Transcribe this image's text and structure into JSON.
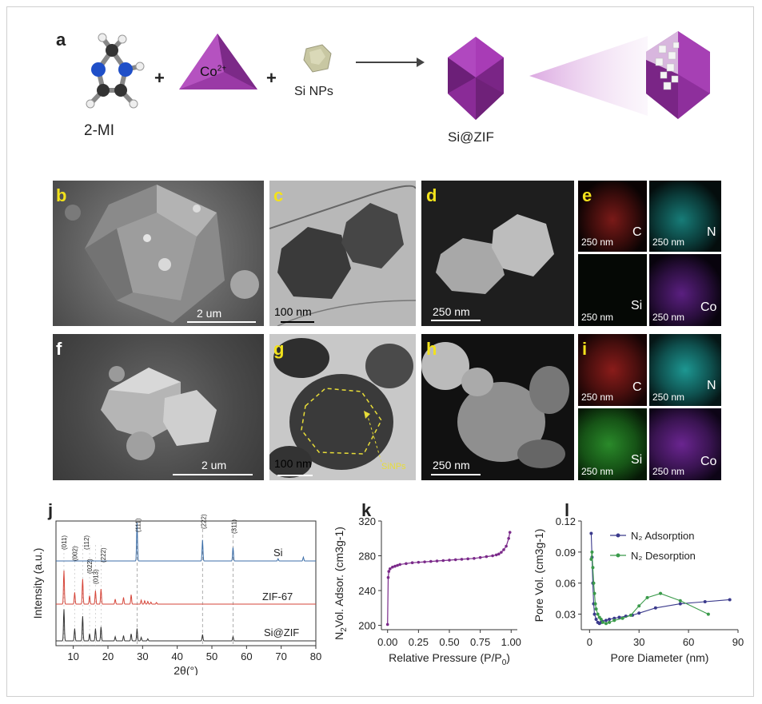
{
  "panel_labels": {
    "a": "a",
    "b": "b",
    "c": "c",
    "d": "d",
    "e": "e",
    "f": "f",
    "g": "g",
    "h": "h",
    "i": "i",
    "j": "j",
    "k": "k",
    "l": "l"
  },
  "scheme": {
    "plus": "+",
    "ligand_label": "2-MI",
    "cobalt_label": "Co",
    "cobalt_charge": "2+",
    "si_label": "Si NPs",
    "product_label": "Si@ZIF"
  },
  "micrographs": {
    "b_scale": "2 um",
    "c_scale": "100 nm",
    "d_scale": "250 nm",
    "f_scale": "2 um",
    "g_scale": "100 nm",
    "g_annot": "SiNPs",
    "h_scale": "250 nm"
  },
  "eds_e": [
    {
      "scale": "250 nm",
      "element": "C",
      "color": "#c0201d"
    },
    {
      "scale": "250 nm",
      "element": "N",
      "color": "#2ac7c0"
    },
    {
      "scale": "250 nm",
      "element": "Si",
      "color": "#3fbf3a"
    },
    {
      "scale": "250 nm",
      "element": "Co",
      "color": "#8a2fc0"
    }
  ],
  "eds_i": [
    {
      "scale": "250 nm",
      "element": "C",
      "color": "#c0201d"
    },
    {
      "scale": "250 nm",
      "element": "N",
      "color": "#2ac7c0"
    },
    {
      "scale": "250 nm",
      "element": "Si",
      "color": "#3fbf3a"
    },
    {
      "scale": "250 nm",
      "element": "Co",
      "color": "#8a2fc0"
    }
  ],
  "chart_data": [
    {
      "type": "line",
      "panel": "j",
      "xlabel": "2θ(°)",
      "ylabel": "Intensity (a.u.)",
      "xlim": [
        5,
        80
      ],
      "xticks": [
        10,
        20,
        30,
        40,
        50,
        60,
        70,
        80
      ],
      "series": [
        {
          "name": "Si",
          "color": "#3c6ea8",
          "peaks": [
            [
              28.4,
              1.0
            ],
            [
              47.3,
              0.55
            ],
            [
              56.1,
              0.35
            ],
            [
              69.1,
              0.06
            ],
            [
              76.4,
              0.1
            ]
          ]
        },
        {
          "name": "ZIF-67",
          "color": "#d6463a",
          "peaks": [
            [
              7.3,
              1.0
            ],
            [
              10.4,
              0.35
            ],
            [
              12.7,
              0.75
            ],
            [
              14.7,
              0.25
            ],
            [
              16.4,
              0.4
            ],
            [
              18.0,
              0.45
            ],
            [
              22.1,
              0.15
            ],
            [
              24.5,
              0.2
            ],
            [
              26.7,
              0.28
            ],
            [
              29.6,
              0.12
            ],
            [
              30.6,
              0.1
            ],
            [
              31.5,
              0.08
            ],
            [
              32.4,
              0.06
            ],
            [
              34.0,
              0.05
            ]
          ]
        },
        {
          "name": "Si@ZIF",
          "color": "#333333",
          "peaks": [
            [
              7.3,
              0.9
            ],
            [
              10.4,
              0.35
            ],
            [
              12.7,
              0.7
            ],
            [
              14.7,
              0.2
            ],
            [
              16.4,
              0.35
            ],
            [
              18.0,
              0.4
            ],
            [
              22.1,
              0.12
            ],
            [
              24.5,
              0.15
            ],
            [
              26.7,
              0.2
            ],
            [
              28.4,
              0.35
            ],
            [
              29.6,
              0.1
            ],
            [
              31.5,
              0.06
            ],
            [
              47.3,
              0.18
            ],
            [
              56.1,
              0.12
            ]
          ]
        }
      ],
      "annotations": [
        "(011)",
        "(002)",
        "(112)",
        "(022)",
        "(013)",
        "(222)",
        "(111)",
        "(222)",
        "(311)"
      ]
    },
    {
      "type": "line",
      "panel": "k",
      "xlabel": "Relative Pressure (P/P",
      "xlabel_sub": "0",
      "xlabel_end": ")",
      "ylabel_pre": "N",
      "ylabel_sub": "2",
      "ylabel": "Vol. Adsor. (cm3g-1)",
      "xlim": [
        -0.05,
        1.05
      ],
      "ylim": [
        195,
        320
      ],
      "xticks": [
        "0.00",
        "0.25",
        "0.50",
        "0.75",
        "1.00"
      ],
      "xtick_values": [
        0.0,
        0.25,
        0.5,
        0.75,
        1.0
      ],
      "yticks": [
        200,
        240,
        280,
        320
      ],
      "series": [
        {
          "name": "",
          "color": "#7b2a8a",
          "x": [
            0.0,
            0.005,
            0.01,
            0.02,
            0.04,
            0.06,
            0.08,
            0.1,
            0.15,
            0.2,
            0.25,
            0.3,
            0.35,
            0.4,
            0.45,
            0.5,
            0.55,
            0.6,
            0.65,
            0.7,
            0.75,
            0.8,
            0.85,
            0.88,
            0.9,
            0.92,
            0.94,
            0.96,
            0.98,
            0.99
          ],
          "y": [
            201,
            255,
            262,
            265,
            267,
            268,
            269,
            270,
            271,
            272,
            272.5,
            273,
            273.5,
            274,
            274.5,
            275,
            275.5,
            276,
            276.5,
            277,
            278,
            279,
            280,
            281,
            282,
            284,
            287,
            291,
            300,
            307
          ]
        }
      ]
    },
    {
      "type": "line",
      "panel": "l",
      "xlabel": "Pore Diameter (nm)",
      "ylabel": "Pore Vol. (cm3g-1)",
      "xlim": [
        -5,
        90
      ],
      "ylim": [
        0.015,
        0.12
      ],
      "xticks": [
        0,
        30,
        60,
        90
      ],
      "yticks": [
        "0.03",
        "0.06",
        "0.09",
        "0.12"
      ],
      "ytick_values": [
        0.03,
        0.06,
        0.09,
        0.12
      ],
      "legend": "top-right",
      "series": [
        {
          "name": "N₂ Adsorption",
          "color": "#3b3a8c",
          "x": [
            1,
            1.5,
            2,
            2.5,
            3,
            4,
            5,
            6,
            7,
            8,
            10,
            12,
            15,
            18,
            22,
            26,
            30,
            40,
            55,
            70,
            85
          ],
          "y": [
            0.108,
            0.085,
            0.06,
            0.04,
            0.03,
            0.025,
            0.022,
            0.021,
            0.022,
            0.023,
            0.024,
            0.025,
            0.026,
            0.027,
            0.028,
            0.029,
            0.031,
            0.036,
            0.04,
            0.042,
            0.044
          ]
        },
        {
          "name": "N₂ Desorption",
          "color": "#3a9a4a",
          "x": [
            1,
            1.5,
            2,
            2.5,
            3,
            3.5,
            4,
            5,
            6,
            7,
            8,
            10,
            12,
            15,
            20,
            25,
            30,
            35,
            43,
            55,
            72
          ],
          "y": [
            0.083,
            0.09,
            0.075,
            0.06,
            0.05,
            0.04,
            0.035,
            0.03,
            0.027,
            0.025,
            0.022,
            0.021,
            0.022,
            0.024,
            0.026,
            0.029,
            0.038,
            0.046,
            0.05,
            0.043,
            0.03
          ]
        }
      ]
    }
  ]
}
